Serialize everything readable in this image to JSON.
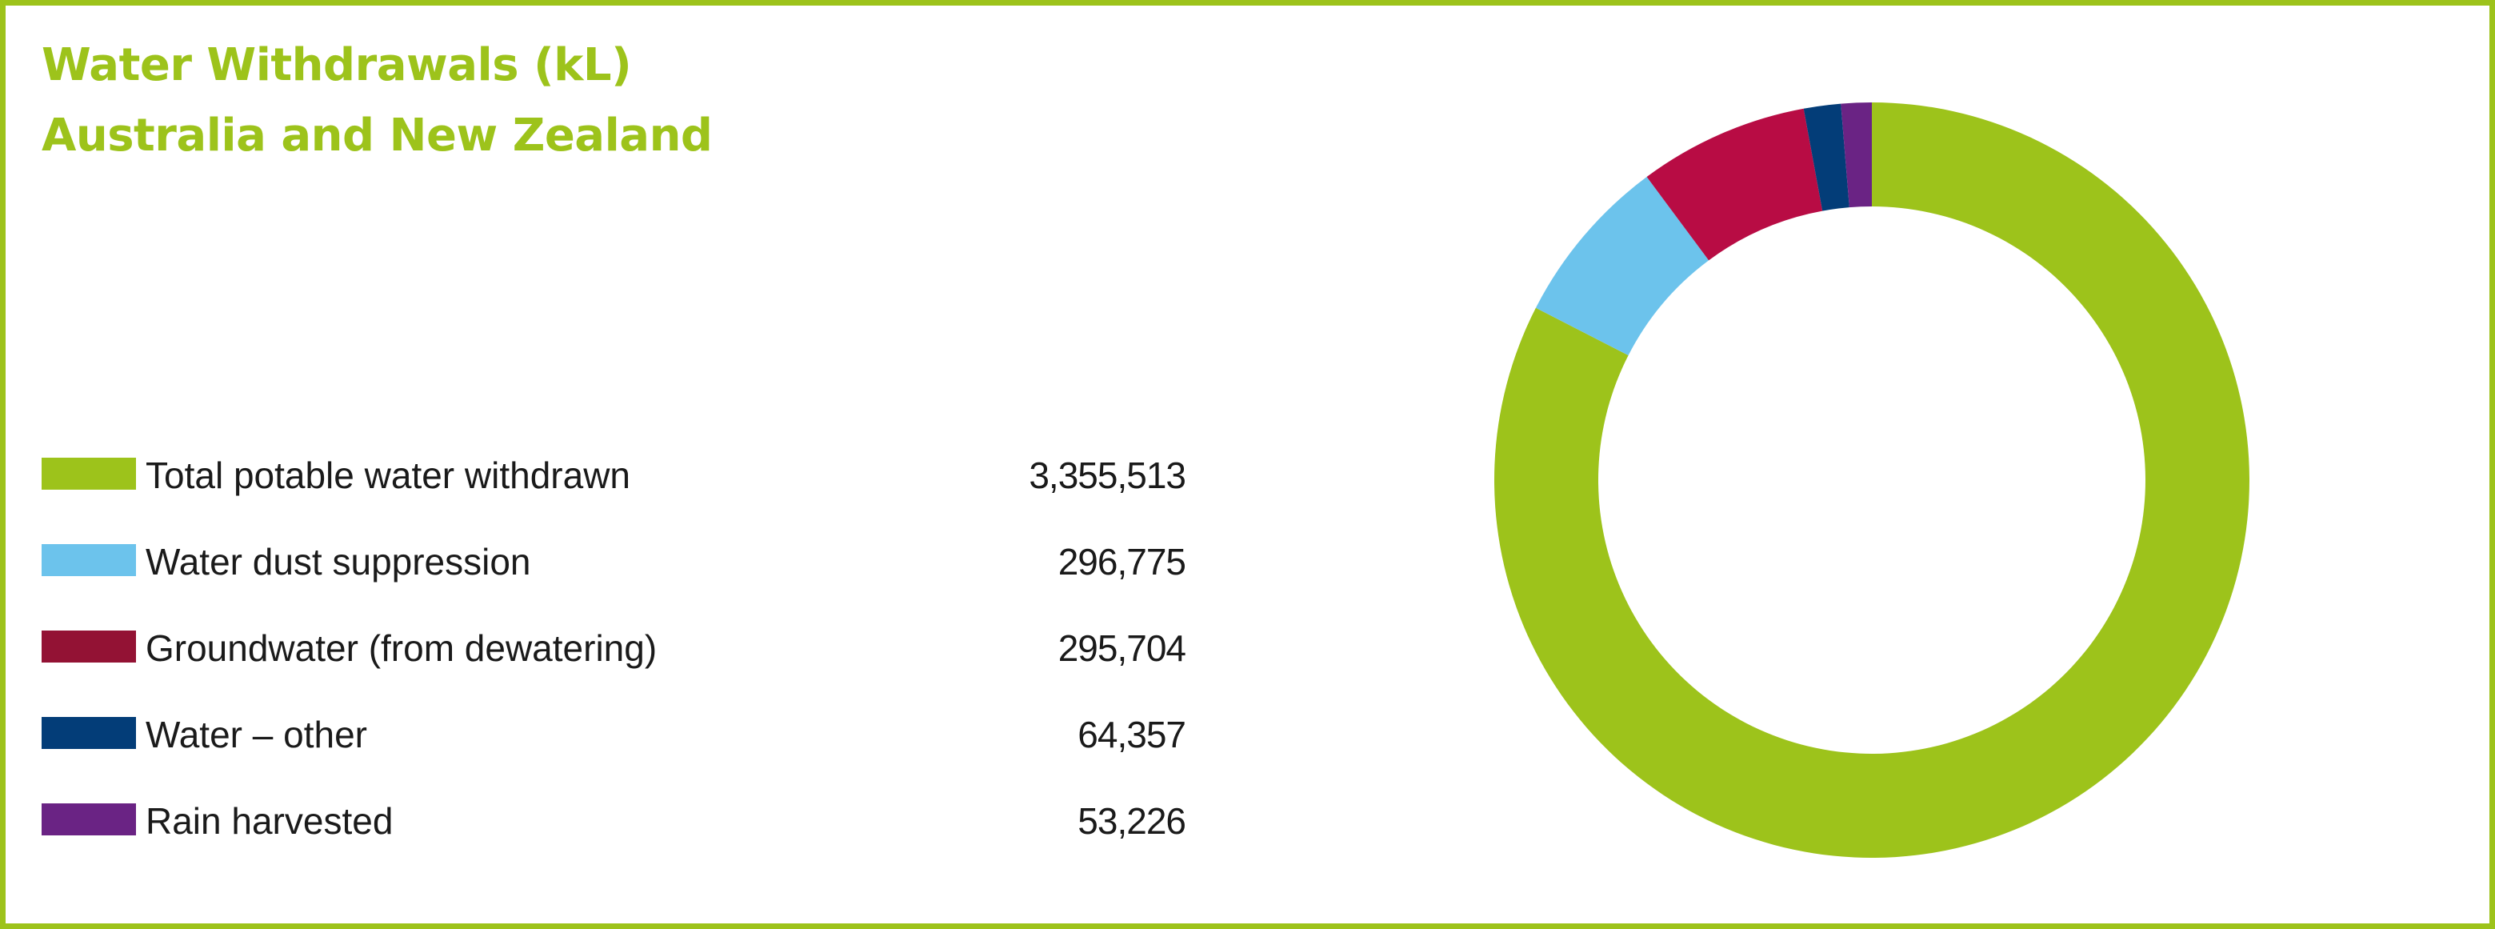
{
  "chart_data": {
    "type": "pie",
    "subtype": "donut",
    "title_lines": [
      "Water Withdrawals (kL)",
      "Australia and New Zealand"
    ],
    "categories": [
      "Total potable water withdrawn",
      "Water dust suppression",
      "Groundwater (from dewatering)",
      "Water – other",
      "Rain harvested"
    ],
    "values": [
      3355513,
      296775,
      295704,
      64357,
      53226
    ],
    "value_labels": [
      "3,355,513",
      "296,775",
      "295,704",
      "64,357",
      "53,226"
    ],
    "colors": [
      "#9dc31b",
      "#6cc3ec",
      "#b80c44",
      "#033d78",
      "#6a2384"
    ],
    "legend_swatch_colors": [
      "#9dc31b",
      "#6cc3ec",
      "#931234",
      "#033d78",
      "#6a2384"
    ],
    "legend_position": "left",
    "start_angle_degrees": 0,
    "direction": "clockwise"
  }
}
